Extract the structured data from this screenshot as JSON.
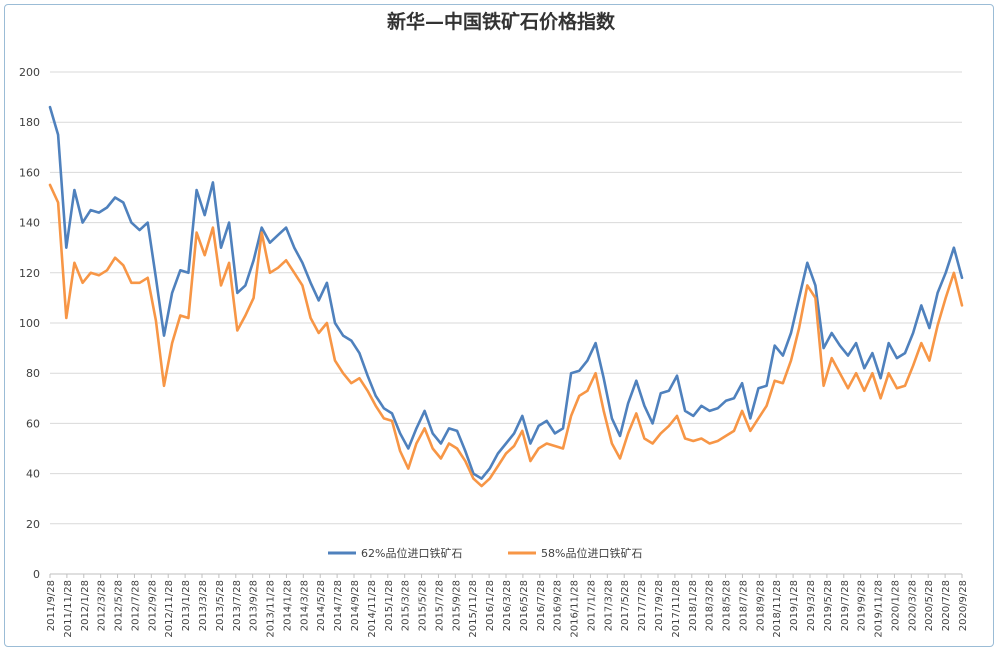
{
  "chart_data": {
    "type": "line",
    "title": "新华—中国铁矿石价格指数",
    "xlabel": "",
    "ylabel": "",
    "ylim": [
      0,
      200
    ],
    "yticks": [
      0,
      20,
      40,
      60,
      80,
      100,
      120,
      140,
      160,
      180,
      200
    ],
    "grid": true,
    "legend_position": "bottom",
    "x_tick_labels": [
      "2011/9/28",
      "2011/11/28",
      "2012/1/28",
      "2012/3/28",
      "2012/5/28",
      "2012/7/28",
      "2012/9/28",
      "2012/11/28",
      "2013/1/28",
      "2013/3/28",
      "2013/5/28",
      "2013/7/28",
      "2013/9/28",
      "2013/11/28",
      "2014/1/28",
      "2014/3/28",
      "2014/5/28",
      "2014/7/28",
      "2014/9/28",
      "2014/11/28",
      "2015/1/28",
      "2015/3/28",
      "2015/5/28",
      "2015/7/28",
      "2015/9/28",
      "2015/11/28",
      "2016/1/28",
      "2016/3/28",
      "2016/5/28",
      "2016/7/28",
      "2016/9/28",
      "2016/11/28",
      "2017/1/28",
      "2017/3/28",
      "2017/5/28",
      "2017/7/28",
      "2017/9/28",
      "2017/11/28",
      "2018/1/28",
      "2018/3/28",
      "2018/5/28",
      "2018/7/28",
      "2018/9/28",
      "2018/11/28",
      "2019/1/28",
      "2019/3/28",
      "2019/5/28",
      "2019/7/28",
      "2019/9/28",
      "2019/11/28",
      "2020/1/28",
      "2020/3/28",
      "2020/5/28",
      "2020/7/28",
      "2020/9/28"
    ],
    "series": [
      {
        "name": "62%品位进口铁矿石",
        "color": "#4f81bd",
        "values": [
          186,
          175,
          130,
          153,
          140,
          145,
          144,
          146,
          150,
          148,
          140,
          137,
          140,
          118,
          95,
          112,
          121,
          120,
          153,
          143,
          156,
          130,
          140,
          112,
          115,
          125,
          138,
          132,
          135,
          138,
          130,
          124,
          116,
          109,
          116,
          100,
          95,
          93,
          88,
          79,
          71,
          66,
          64,
          56,
          50,
          58,
          65,
          56,
          52,
          58,
          57,
          49,
          40,
          38,
          42,
          48,
          52,
          56,
          63,
          52,
          59,
          61,
          56,
          58,
          80,
          81,
          85,
          92,
          78,
          62,
          55,
          68,
          77,
          67,
          60,
          72,
          73,
          79,
          65,
          63,
          67,
          65,
          66,
          69,
          70,
          76,
          62,
          74,
          75,
          91,
          87,
          96,
          110,
          124,
          115,
          90,
          96,
          91,
          87,
          92,
          82,
          88,
          78,
          92,
          86,
          88,
          96,
          107,
          98,
          112,
          120,
          130,
          118
        ]
      },
      {
        "name": "58%品位进口铁矿石",
        "color": "#f79646",
        "values": [
          155,
          148,
          102,
          124,
          116,
          120,
          119,
          121,
          126,
          123,
          116,
          116,
          118,
          101,
          75,
          92,
          103,
          102,
          136,
          127,
          138,
          115,
          124,
          97,
          103,
          110,
          136,
          120,
          122,
          125,
          120,
          115,
          102,
          96,
          100,
          85,
          80,
          76,
          78,
          73,
          67,
          62,
          61,
          49,
          42,
          52,
          58,
          50,
          46,
          52,
          50,
          45,
          38,
          35,
          38,
          43,
          48,
          51,
          57,
          45,
          50,
          52,
          51,
          50,
          63,
          71,
          73,
          80,
          65,
          52,
          46,
          56,
          64,
          54,
          52,
          56,
          59,
          63,
          54,
          53,
          54,
          52,
          53,
          55,
          57,
          65,
          57,
          62,
          67,
          77,
          76,
          85,
          98,
          115,
          110,
          75,
          86,
          80,
          74,
          80,
          73,
          80,
          70,
          80,
          74,
          75,
          83,
          92,
          85,
          99,
          110,
          120,
          107
        ]
      }
    ]
  }
}
